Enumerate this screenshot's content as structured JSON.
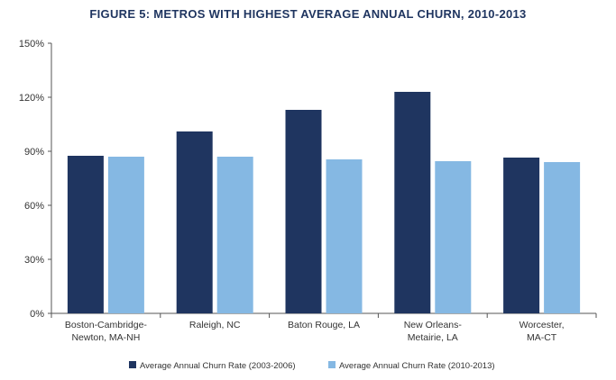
{
  "chart_data": {
    "type": "bar",
    "title": "FIGURE 5: METROS WITH HIGHEST AVERAGE ANNUAL CHURN, 2010-2013",
    "xlabel": "",
    "ylabel": "",
    "categories": [
      [
        "Boston-Cambridge-",
        "Newton, MA-NH"
      ],
      [
        "Raleigh, NC"
      ],
      [
        "Baton Rouge, LA"
      ],
      [
        "New Orleans-",
        "Metairie, LA"
      ],
      [
        "Worcester,",
        "MA-CT"
      ]
    ],
    "series": [
      {
        "name": "Average Annual Churn Rate (2003-2006)",
        "color": "#1f3560",
        "values": [
          87.5,
          101,
          113,
          123,
          86.5
        ]
      },
      {
        "name": "Average Annual Churn Rate (2010-2013)",
        "color": "#85b8e3",
        "values": [
          87,
          87,
          85.5,
          84.5,
          84
        ]
      }
    ],
    "ylim": [
      0,
      150
    ],
    "yticks": [
      0,
      30,
      60,
      90,
      120,
      150
    ],
    "ytick_labels": [
      "0%",
      "30%",
      "60%",
      "90%",
      "120%",
      "150%"
    ],
    "grid": false,
    "legend_position": "bottom"
  }
}
